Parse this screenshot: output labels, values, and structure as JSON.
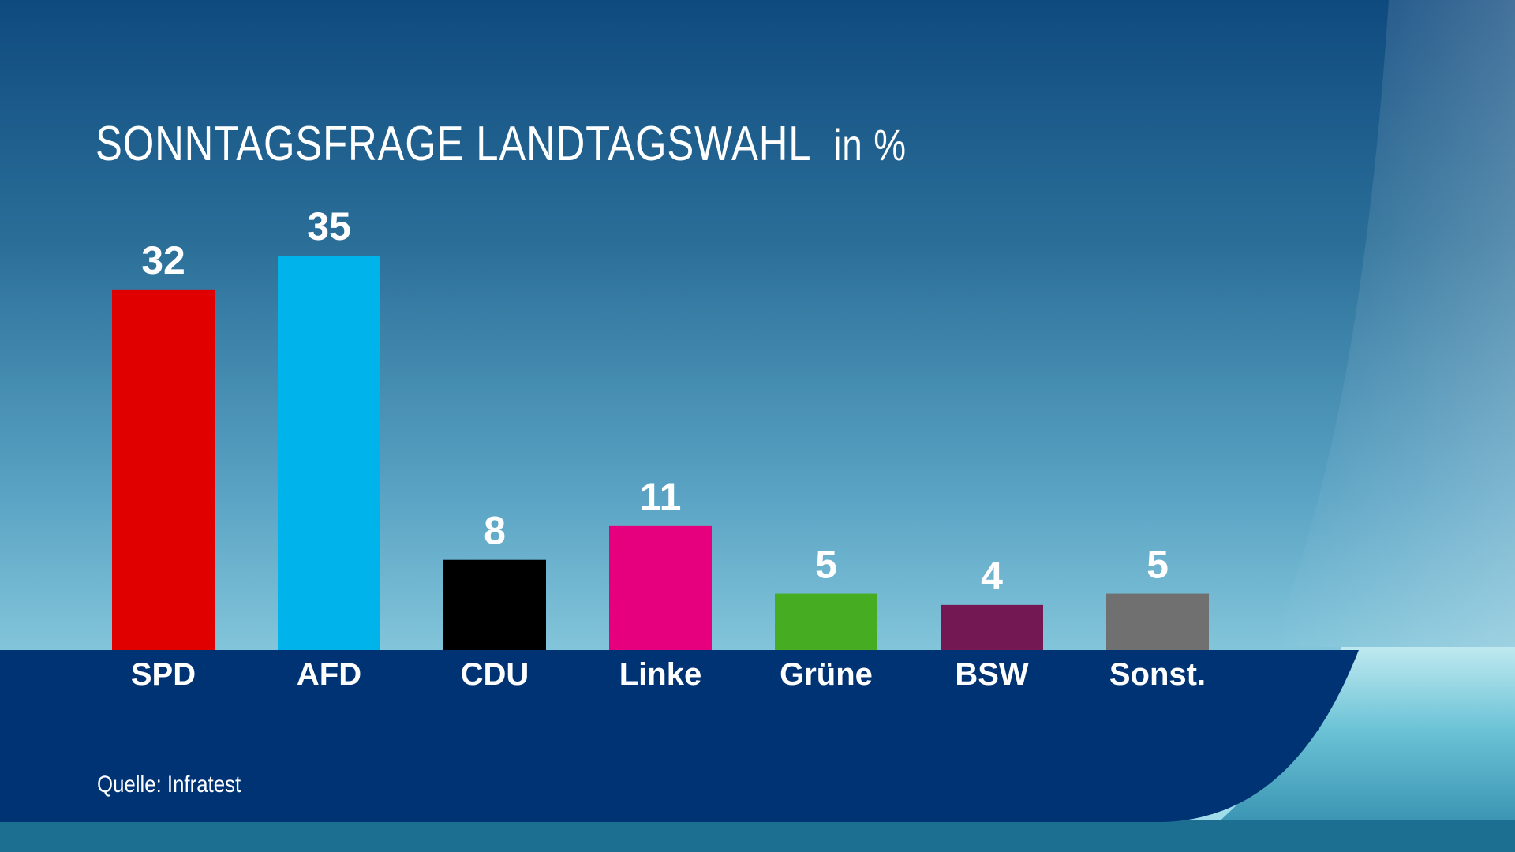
{
  "title": "SONNTAGSFRAGE LANDTAGSWAHL",
  "unit": "in %",
  "source": "Quelle: Infratest",
  "chart_data": {
    "type": "bar",
    "title": "SONNTAGSFRAGE LANDTAGSWAHL",
    "subtitle": "in %",
    "categories": [
      "SPD",
      "AFD",
      "CDU",
      "Linke",
      "Grüne",
      "BSW",
      "Sonst."
    ],
    "values": [
      32,
      35,
      8,
      11,
      5,
      4,
      5
    ],
    "colors": [
      "#e00000",
      "#00b4eb",
      "#000000",
      "#e6007e",
      "#46ad23",
      "#731852",
      "#707070"
    ],
    "ylim": [
      0,
      35
    ],
    "grid": false,
    "legend": "none"
  }
}
